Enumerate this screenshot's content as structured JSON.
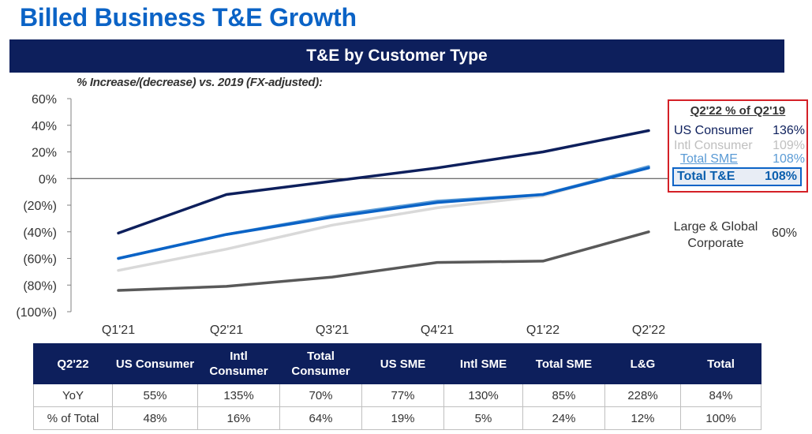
{
  "header": {
    "title": "Billed Business  T&E Growth",
    "section": "T&E by Customer Type",
    "subtitle": "% Increase/(decrease)  vs. 2019 (FX-adjusted):"
  },
  "colors": {
    "navy": "#0d1f5c",
    "blue": "#0b63c6",
    "light_blue": "#5b9bd5",
    "light_gray": "#d9d9d9",
    "dark_gray": "#595959",
    "red": "#d42027"
  },
  "legend": {
    "title": "Q2'22 % of Q2'19",
    "items": [
      {
        "name": "US Consumer",
        "value": "136%",
        "color": "#0d1f5c"
      },
      {
        "name": "Intl Consumer",
        "value": "109%",
        "color": "#bfbfbf"
      },
      {
        "name": "Total SME",
        "value": "108%",
        "color": "#5b9bd5"
      },
      {
        "name": "Total T&E",
        "value": "108%",
        "color": "#0b5fae"
      }
    ]
  },
  "callout": {
    "name": "Large & Global Corporate",
    "value": "60%"
  },
  "chart_data": {
    "type": "line",
    "categories": [
      "Q1'21",
      "Q2'21",
      "Q3'21",
      "Q4'21",
      "Q1'22",
      "Q2'22"
    ],
    "ylim": [
      -100,
      60
    ],
    "y_ticks": [
      60,
      40,
      20,
      0,
      -20,
      -40,
      -60,
      -80,
      -100
    ],
    "y_tick_labels": [
      "60%",
      "40%",
      "20%",
      "0%",
      "(20%)",
      "(40%)",
      "(60%)",
      "(80%)",
      "(100%)"
    ],
    "grid": false,
    "series": [
      {
        "name": "Intl Consumer",
        "color": "#d9d9d9",
        "values": [
          -69,
          -53,
          -35,
          -22,
          -13,
          9
        ]
      },
      {
        "name": "Total SME",
        "color": "#5b9bd5",
        "values": [
          -60,
          -42,
          -28,
          -17,
          -12,
          9
        ]
      },
      {
        "name": "Total T&E",
        "color": "#0b63c6",
        "values": [
          -60,
          -42,
          -29,
          -18,
          -12,
          8
        ]
      },
      {
        "name": "US Consumer",
        "color": "#0d1f5c",
        "values": [
          -41,
          -12,
          -2,
          8,
          20,
          36
        ]
      },
      {
        "name": "Large & Global Corporate",
        "color": "#595959",
        "values": [
          -84,
          -81,
          -74,
          -63,
          -62,
          -40
        ]
      }
    ]
  },
  "table": {
    "headers": [
      "Q2'22",
      "US Consumer",
      "Intl Consumer",
      "Total Consumer",
      "US SME",
      "Intl SME",
      "Total SME",
      "L&G",
      "Total"
    ],
    "rows": [
      [
        "YoY",
        "55%",
        "135%",
        "70%",
        "77%",
        "130%",
        "85%",
        "228%",
        "84%"
      ],
      [
        "% of Total",
        "48%",
        "16%",
        "64%",
        "19%",
        "5%",
        "24%",
        "12%",
        "100%"
      ]
    ]
  }
}
